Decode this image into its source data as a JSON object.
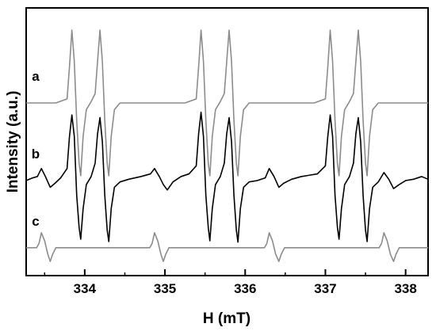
{
  "chart_data": {
    "type": "line",
    "xlabel": "H (mT)",
    "ylabel": "Intensity (a.u.)",
    "xlim": [
      333.27,
      338.28
    ],
    "ylim": [
      0,
      100
    ],
    "xticks": [
      334,
      335,
      336,
      337,
      338
    ],
    "xminorticks": [
      333.5,
      334.5,
      335.5,
      336.5,
      337.5
    ],
    "series": [
      {
        "name": "a",
        "color": "#8c8c8c",
        "x": [
          333.27,
          333.64,
          333.78,
          333.81,
          333.84,
          333.87,
          333.9,
          333.93,
          333.95,
          333.98,
          334.02,
          334.08,
          334.13,
          334.16,
          334.19,
          334.22,
          334.25,
          334.28,
          334.3,
          334.33,
          334.37,
          334.44,
          335.25,
          335.39,
          335.42,
          335.45,
          335.48,
          335.51,
          335.54,
          335.56,
          335.59,
          335.63,
          335.69,
          335.74,
          335.77,
          335.8,
          335.83,
          335.86,
          335.89,
          335.91,
          335.94,
          335.98,
          336.05,
          336.86,
          337.0,
          337.03,
          337.06,
          337.09,
          337.12,
          337.15,
          337.17,
          337.2,
          337.24,
          337.3,
          337.35,
          337.38,
          337.41,
          337.44,
          337.47,
          337.5,
          337.52,
          337.55,
          337.59,
          337.66,
          338.28
        ],
        "values": [
          64.5,
          64.5,
          66,
          78,
          91.7,
          80,
          58,
          42,
          37.3,
          52,
          62,
          65,
          68,
          80,
          91.7,
          80,
          58,
          42,
          37.3,
          52,
          62,
          64.5,
          64.5,
          66,
          78,
          91.7,
          80,
          58,
          42,
          37.3,
          52,
          62,
          65,
          68,
          80,
          91.7,
          80,
          58,
          42,
          37.3,
          52,
          62,
          64.5,
          64.5,
          66,
          78,
          91.7,
          80,
          58,
          42,
          37.3,
          52,
          62,
          65,
          68,
          80,
          91.7,
          80,
          58,
          42,
          37.3,
          52,
          62,
          64.5,
          64.5
        ]
      },
      {
        "name": "b",
        "color": "#000000",
        "x": [
          333.27,
          333.35,
          333.41,
          333.46,
          333.51,
          333.57,
          333.63,
          333.7,
          333.78,
          333.81,
          333.84,
          333.87,
          333.9,
          333.93,
          333.95,
          333.98,
          334.02,
          334.08,
          334.13,
          334.16,
          334.19,
          334.22,
          334.25,
          334.28,
          334.3,
          334.33,
          334.37,
          334.44,
          334.55,
          334.7,
          334.82,
          334.87,
          334.93,
          334.98,
          335.03,
          335.1,
          335.2,
          335.3,
          335.39,
          335.42,
          335.45,
          335.48,
          335.51,
          335.54,
          335.56,
          335.59,
          335.63,
          335.69,
          335.74,
          335.77,
          335.8,
          335.83,
          335.86,
          335.89,
          335.91,
          335.94,
          335.98,
          336.05,
          336.15,
          336.25,
          336.3,
          336.36,
          336.42,
          336.48,
          336.58,
          336.7,
          336.8,
          336.9,
          337.0,
          337.03,
          337.06,
          337.09,
          337.12,
          337.15,
          337.17,
          337.2,
          337.24,
          337.3,
          337.35,
          337.38,
          337.41,
          337.44,
          337.47,
          337.5,
          337.52,
          337.55,
          337.59,
          337.66,
          337.73,
          337.79,
          337.85,
          337.92,
          338.0,
          338.1,
          338.2,
          338.28
        ],
        "values": [
          35.5,
          36.5,
          37,
          40,
          37,
          33,
          34.5,
          36.5,
          40,
          52,
          60,
          52,
          30,
          18,
          13.6,
          25,
          34,
          37,
          42,
          53,
          59,
          50,
          30,
          17,
          12.7,
          25,
          33,
          35,
          36,
          37,
          38,
          40,
          37,
          34,
          32,
          35,
          37,
          38,
          41,
          53,
          61,
          52,
          30,
          18,
          13,
          25,
          34,
          37,
          42,
          53,
          59,
          50,
          30,
          17,
          12.5,
          25,
          33,
          35,
          35.5,
          36.5,
          40,
          37,
          33,
          34.5,
          36,
          37,
          37.5,
          38,
          41,
          52,
          60,
          52,
          30,
          18,
          13.6,
          25,
          34,
          37,
          42,
          53,
          59,
          50,
          30,
          17,
          12.7,
          25,
          33,
          35,
          38.5,
          36,
          32.5,
          34,
          35.5,
          36,
          37,
          36
        ]
      },
      {
        "name": "c",
        "color": "#8c8c8c",
        "x": [
          333.27,
          333.4,
          333.43,
          333.46,
          333.5,
          333.54,
          333.57,
          333.6,
          333.64,
          334.81,
          334.84,
          334.87,
          334.91,
          334.95,
          334.98,
          335.01,
          335.05,
          336.24,
          336.27,
          336.3,
          336.34,
          336.38,
          336.42,
          336.45,
          336.49,
          337.67,
          337.7,
          337.73,
          337.77,
          337.81,
          337.85,
          337.88,
          337.92,
          338.28
        ],
        "values": [
          10.4,
          10.4,
          12,
          16,
          13,
          8,
          5.3,
          8,
          10.4,
          10.4,
          12,
          16,
          13,
          8,
          5.3,
          8,
          10.4,
          10.4,
          12,
          16,
          13,
          8,
          5.3,
          8,
          10.4,
          10.4,
          12,
          16,
          13,
          8,
          5.3,
          8,
          10.4,
          10.4
        ]
      }
    ]
  }
}
